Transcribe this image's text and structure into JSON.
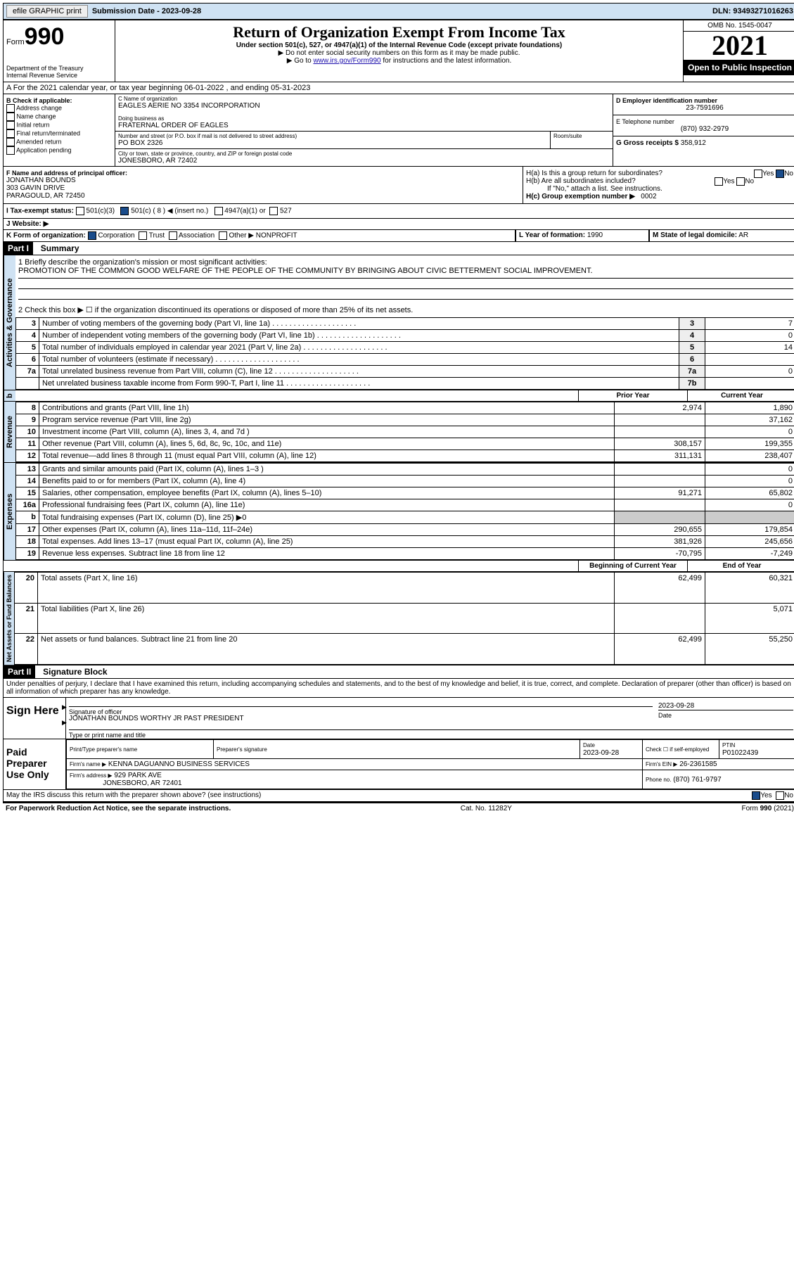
{
  "topbar": {
    "efile": "efile GRAPHIC print",
    "submission": "Submission Date - 2023-09-28",
    "dln": "DLN: 93493271016263"
  },
  "header": {
    "form_word": "Form",
    "form_num": "990",
    "dept": "Department of the Treasury",
    "irs": "Internal Revenue Service",
    "title": "Return of Organization Exempt From Income Tax",
    "sub": "Under section 501(c), 527, or 4947(a)(1) of the Internal Revenue Code (except private foundations)",
    "note1": "▶ Do not enter social security numbers on this form as it may be made public.",
    "note2_pre": "▶ Go to ",
    "note2_link": "www.irs.gov/Form990",
    "note2_post": " for instructions and the latest information.",
    "omb": "OMB No. 1545-0047",
    "year": "2021",
    "open": "Open to Public Inspection"
  },
  "line_a": "A For the 2021 calendar year, or tax year beginning 06-01-2022  , and ending 05-31-2023",
  "col_b": {
    "title": "B Check if applicable:",
    "items": [
      "Address change",
      "Name change",
      "Initial return",
      "Final return/terminated",
      "Amended return",
      "Application pending"
    ]
  },
  "col_c": {
    "name_label": "C Name of organization",
    "name": "EAGLES AERIE NO 3354 INCORPORATION",
    "dba_label": "Doing business as",
    "dba": "FRATERNAL ORDER OF EAGLES",
    "street_label": "Number and street (or P.O. box if mail is not delivered to street address)",
    "room_label": "Room/suite",
    "street": "PO BOX 2326",
    "city_label": "City or town, state or province, country, and ZIP or foreign postal code",
    "city": "JONESBORO, AR  72402"
  },
  "col_d": {
    "ein_label": "D Employer identification number",
    "ein": "23-7591696",
    "tel_label": "E Telephone number",
    "tel": "(870) 932-2979",
    "gross_label": "G Gross receipts $",
    "gross": "358,912"
  },
  "block_f": {
    "label": "F Name and address of principal officer:",
    "name": "JONATHAN BOUNDS",
    "addr1": "303 GAVIN DRIVE",
    "addr2": "PARAGOULD, AR  72450"
  },
  "block_h": {
    "a": "H(a)  Is this a group return for subordinates?",
    "b": "H(b)  Are all subordinates included?",
    "b_note": "If \"No,\" attach a list. See instructions.",
    "c": "H(c)  Group exemption number ▶",
    "c_val": "0002",
    "yes": "Yes",
    "no": "No"
  },
  "tax_exempt": {
    "label": "I   Tax-exempt status:",
    "o1": "501(c)(3)",
    "o2": "501(c) ( 8 ) ◀ (insert no.)",
    "o3": "4947(a)(1) or",
    "o4": "527"
  },
  "website": "J   Website: ▶",
  "line_k": {
    "label": "K Form of organization:",
    "opts": [
      "Corporation",
      "Trust",
      "Association",
      "Other ▶"
    ],
    "other": "NONPROFIT",
    "year_label": "L Year of formation:",
    "year": "1990",
    "state_label": "M State of legal domicile:",
    "state": "AR"
  },
  "part1": {
    "title": "Part I",
    "heading": "Summary",
    "l1_label": "1  Briefly describe the organization's mission or most significant activities:",
    "l1_text": "PROMOTION OF THE COMMON GOOD WELFARE OF THE PEOPLE OF THE COMMUNITY BY BRINGING ABOUT CIVIC BETTERMENT SOCIAL IMPROVEMENT.",
    "l2": "2   Check this box ▶ ☐  if the organization discontinued its operations or disposed of more than 25% of its net assets.",
    "gov_lines": [
      {
        "n": "3",
        "t": "Number of voting members of the governing body (Part VI, line 1a)",
        "box": "3",
        "v": "7"
      },
      {
        "n": "4",
        "t": "Number of independent voting members of the governing body (Part VI, line 1b)",
        "box": "4",
        "v": "0"
      },
      {
        "n": "5",
        "t": "Total number of individuals employed in calendar year 2021 (Part V, line 2a)",
        "box": "5",
        "v": "14"
      },
      {
        "n": "6",
        "t": "Total number of volunteers (estimate if necessary)",
        "box": "6",
        "v": ""
      },
      {
        "n": "7a",
        "t": "Total unrelated business revenue from Part VIII, column (C), line 12",
        "box": "7a",
        "v": "0"
      },
      {
        "n": "",
        "t": "Net unrelated business taxable income from Form 990-T, Part I, line 11",
        "box": "7b",
        "v": ""
      }
    ],
    "col_prior": "Prior Year",
    "col_current": "Current Year",
    "rev_lines": [
      {
        "n": "8",
        "t": "Contributions and grants (Part VIII, line 1h)",
        "p": "2,974",
        "c": "1,890"
      },
      {
        "n": "9",
        "t": "Program service revenue (Part VIII, line 2g)",
        "p": "",
        "c": "37,162"
      },
      {
        "n": "10",
        "t": "Investment income (Part VIII, column (A), lines 3, 4, and 7d )",
        "p": "",
        "c": "0"
      },
      {
        "n": "11",
        "t": "Other revenue (Part VIII, column (A), lines 5, 6d, 8c, 9c, 10c, and 11e)",
        "p": "308,157",
        "c": "199,355"
      },
      {
        "n": "12",
        "t": "Total revenue—add lines 8 through 11 (must equal Part VIII, column (A), line 12)",
        "p": "311,131",
        "c": "238,407"
      }
    ],
    "exp_lines": [
      {
        "n": "13",
        "t": "Grants and similar amounts paid (Part IX, column (A), lines 1–3 )",
        "p": "",
        "c": "0"
      },
      {
        "n": "14",
        "t": "Benefits paid to or for members (Part IX, column (A), line 4)",
        "p": "",
        "c": "0"
      },
      {
        "n": "15",
        "t": "Salaries, other compensation, employee benefits (Part IX, column (A), lines 5–10)",
        "p": "91,271",
        "c": "65,802"
      },
      {
        "n": "16a",
        "t": "Professional fundraising fees (Part IX, column (A), line 11e)",
        "p": "",
        "c": "0"
      },
      {
        "n": "b",
        "t": "Total fundraising expenses (Part IX, column (D), line 25) ▶0",
        "p": "SHADE",
        "c": "SHADE"
      },
      {
        "n": "17",
        "t": "Other expenses (Part IX, column (A), lines 11a–11d, 11f–24e)",
        "p": "290,655",
        "c": "179,854"
      },
      {
        "n": "18",
        "t": "Total expenses. Add lines 13–17 (must equal Part IX, column (A), line 25)",
        "p": "381,926",
        "c": "245,656"
      },
      {
        "n": "19",
        "t": "Revenue less expenses. Subtract line 18 from line 12",
        "p": "-70,795",
        "c": "-7,249"
      }
    ],
    "col_begin": "Beginning of Current Year",
    "col_end": "End of Year",
    "net_lines": [
      {
        "n": "20",
        "t": "Total assets (Part X, line 16)",
        "p": "62,499",
        "c": "60,321"
      },
      {
        "n": "21",
        "t": "Total liabilities (Part X, line 26)",
        "p": "",
        "c": "5,071"
      },
      {
        "n": "22",
        "t": "Net assets or fund balances. Subtract line 21 from line 20",
        "p": "62,499",
        "c": "55,250"
      }
    ],
    "tab_gov": "Activities & Governance",
    "tab_rev": "Revenue",
    "tab_exp": "Expenses",
    "tab_net": "Net Assets or Fund Balances"
  },
  "part2": {
    "title": "Part II",
    "heading": "Signature Block",
    "perjury": "Under penalties of perjury, I declare that I have examined this return, including accompanying schedules and statements, and to the best of my knowledge and belief, it is true, correct, and complete. Declaration of preparer (other than officer) is based on all information of which preparer has any knowledge.",
    "sign_here": "Sign Here",
    "sig_officer": "Signature of officer",
    "sig_date": "2023-09-28",
    "date_label": "Date",
    "typed_name": "JONATHAN BOUNDS WORTHY JR PAST PRESIDENT",
    "typed_label": "Type or print name and title",
    "paid": "Paid Preparer Use Only",
    "prep_name_label": "Print/Type preparer's name",
    "prep_sig_label": "Preparer's signature",
    "prep_date_label": "Date",
    "prep_date": "2023-09-28",
    "check_self": "Check ☐ if self-employed",
    "ptin_label": "PTIN",
    "ptin": "P01022439",
    "firm_name_label": "Firm's name    ▶",
    "firm_name": "KENNA DAGUANNO BUSINESS SERVICES",
    "firm_ein_label": "Firm's EIN ▶",
    "firm_ein": "26-2361585",
    "firm_addr_label": "Firm's address ▶",
    "firm_addr": "929 PARK AVE",
    "firm_city": "JONESBORO, AR  72401",
    "firm_phone_label": "Phone no.",
    "firm_phone": "(870) 761-9797",
    "discuss": "May the IRS discuss this return with the preparer shown above? (see instructions)",
    "yes": "Yes",
    "no": "No"
  },
  "footer": {
    "pra": "For Paperwork Reduction Act Notice, see the separate instructions.",
    "cat": "Cat. No. 11282Y",
    "form": "Form 990 (2021)"
  }
}
